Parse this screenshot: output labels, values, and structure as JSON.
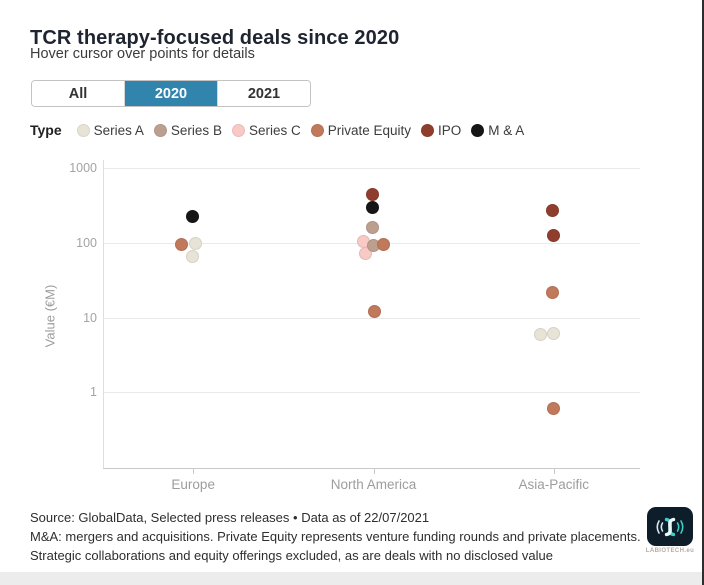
{
  "header": {
    "title": "TCR therapy-focused deals since 2020",
    "subtitle": "Hover cursor over points for details"
  },
  "tabs": {
    "items": [
      {
        "label": "All"
      },
      {
        "label": "2020"
      },
      {
        "label": "2021"
      }
    ],
    "active": "2020",
    "active_color": "#3185ad"
  },
  "legend": {
    "label": "Type",
    "items": [
      {
        "name": "Series A",
        "color": "#e8e3d7"
      },
      {
        "name": "Series B",
        "color": "#bd9f90"
      },
      {
        "name": "Series C",
        "color": "#f8c9c5"
      },
      {
        "name": "Private Equity",
        "color": "#c0795a"
      },
      {
        "name": "IPO",
        "color": "#8f3e2d"
      },
      {
        "name": "M & A",
        "color": "#161616"
      }
    ]
  },
  "chart_data": {
    "type": "scatter",
    "title": "TCR therapy-focused deals since 2020",
    "subtitle": "Hover cursor over points for details",
    "ylabel": "Value (€M)",
    "y_scale": "log",
    "yticks": [
      1000,
      100,
      10,
      1
    ],
    "ylim": [
      0.1,
      1000
    ],
    "grid": true,
    "categories": [
      "Europe",
      "North America",
      "Asia-Pacific"
    ],
    "legend_position": "top",
    "points": [
      {
        "category": "Europe",
        "type": "M & A",
        "value": 230,
        "dx": -1
      },
      {
        "category": "Europe",
        "type": "Series A",
        "value": 98,
        "dx": 2
      },
      {
        "category": "Europe",
        "type": "Private Equity",
        "value": 96,
        "dx": -12
      },
      {
        "category": "Europe",
        "type": "Series A",
        "value": 67,
        "dx": -1
      },
      {
        "category": "North America",
        "type": "IPO",
        "value": 450,
        "dx": -1
      },
      {
        "category": "North America",
        "type": "M & A",
        "value": 300,
        "dx": -1
      },
      {
        "category": "North America",
        "type": "Series B",
        "value": 160,
        "dx": -1
      },
      {
        "category": "North America",
        "type": "Series C",
        "value": 105,
        "dx": -10
      },
      {
        "category": "North America",
        "type": "Series C",
        "value": 73,
        "dx": -8
      },
      {
        "category": "North America",
        "type": "Series B",
        "value": 94,
        "dx": 0
      },
      {
        "category": "North America",
        "type": "Private Equity",
        "value": 96,
        "dx": 10
      },
      {
        "category": "North America",
        "type": "Private Equity",
        "value": 12,
        "dx": 1
      },
      {
        "category": "Asia-Pacific",
        "type": "IPO",
        "value": 270,
        "dx": -1
      },
      {
        "category": "Asia-Pacific",
        "type": "IPO",
        "value": 125,
        "dx": 0
      },
      {
        "category": "Asia-Pacific",
        "type": "Private Equity",
        "value": 22,
        "dx": -1
      },
      {
        "category": "Asia-Pacific",
        "type": "Series A",
        "value": 5.9,
        "dx": -13
      },
      {
        "category": "Asia-Pacific",
        "type": "Series A",
        "value": 6.1,
        "dx": 0
      },
      {
        "category": "Asia-Pacific",
        "type": "Private Equity",
        "value": 0.6,
        "dx": 0
      }
    ]
  },
  "footer": {
    "source": "Source: GlobalData, Selected press releases • Data as of 22/07/2021",
    "note": "M&A: mergers and acquisitions. Private Equity represents venture funding rounds and private placements. Strategic collaborations and equity offerings excluded, as are deals with no disclosed value"
  },
  "logo": {
    "text": "LABIOTECH.eu"
  }
}
